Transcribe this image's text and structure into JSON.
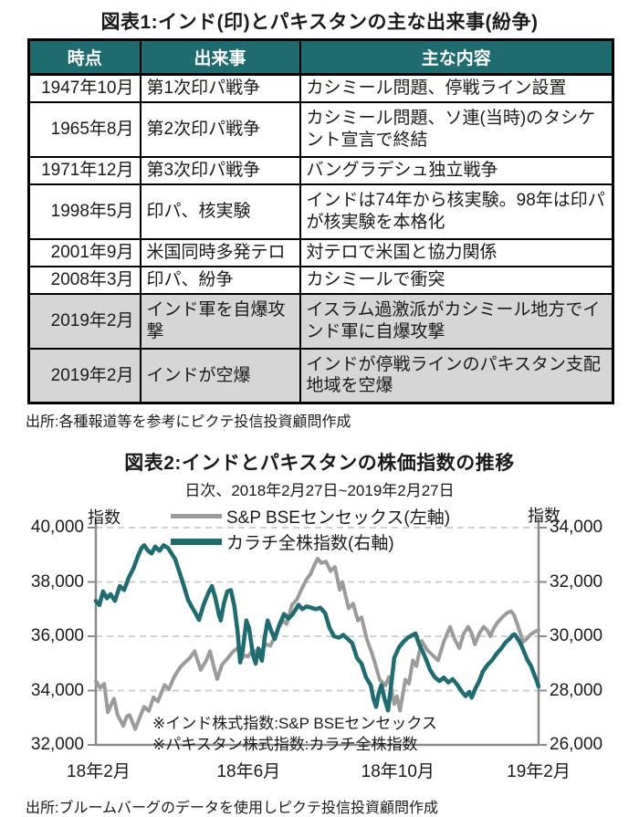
{
  "figure1": {
    "title": "図表1:インド(印)とパキスタンの主な出来事(紛争)",
    "table": {
      "headers": [
        "時点",
        "出来事",
        "主な内容"
      ],
      "rows": [
        {
          "date": "1947年10月",
          "event": "第1次印パ戦争",
          "detail": "カシミール問題、停戦ライン設置",
          "highlight": false
        },
        {
          "date": "1965年8月",
          "event": "第2次印パ戦争",
          "detail": "カシミール問題、ソ連(当時)のタシケント宣言で終結",
          "highlight": false
        },
        {
          "date": "1971年12月",
          "event": "第3次印パ戦争",
          "detail": "バングラデシュ独立戦争",
          "highlight": false
        },
        {
          "date": "1998年5月",
          "event": "印パ、核実験",
          "detail": "インドは74年から核実験。98年は印パが核実験を本格化",
          "highlight": false
        },
        {
          "date": "2001年9月",
          "event": "米国同時多発テロ",
          "detail": "対テロで米国と協力関係",
          "highlight": false
        },
        {
          "date": "2008年3月",
          "event": "印パ、紛争",
          "detail": "カシミールで衝突",
          "highlight": false
        },
        {
          "date": "2019年2月",
          "event": "インド軍を自爆攻撃",
          "detail": "イスラム過激派がカシミール地方でインド軍に自爆攻撃",
          "highlight": true
        },
        {
          "date": "2019年2月",
          "event": "インドが空爆",
          "detail": "インドが停戦ラインのパキスタン支配地域を空爆",
          "highlight": true
        }
      ]
    },
    "source": "出所:各種報道等を参考にピクテ投信投資顧問作成"
  },
  "figure2": {
    "title": "図表2:インドとパキスタンの株価指数の推移",
    "subtitle": "日次、2018年2月27日~2019年2月27日",
    "source": "出所:ブルームバーグのデータを使用しピクテ投信投資顧問作成"
  },
  "colors": {
    "teal": "#1E6B70",
    "line_gray": "#9B9B9B",
    "grid": "#C9C9C9",
    "axis": "#8A8A8A",
    "row_highlight": "#D6D6D6"
  },
  "chart_data": {
    "type": "line",
    "title": "図表2:インドとパキスタンの株価指数の推移",
    "subtitle": "日次、2018年2月27日~2019年2月27日",
    "grid": "horizontal-dashed",
    "legend_position": "top-center",
    "left_axis": {
      "label": "指数",
      "range": [
        32000,
        40000
      ],
      "ticks": [
        "40,000",
        "38,000",
        "36,000",
        "34,000",
        "32,000"
      ]
    },
    "right_axis": {
      "label": "指数",
      "range": [
        26000,
        34000
      ],
      "ticks": [
        "34,000",
        "32,000",
        "30,000",
        "28,000",
        "26,000"
      ]
    },
    "x_ticks": [
      {
        "label": "18年2月",
        "pos": 0.006
      },
      {
        "label": "18年6月",
        "pos": 0.345
      },
      {
        "label": "18年10月",
        "pos": 0.682
      },
      {
        "label": "19年2月",
        "pos": 1.0
      }
    ],
    "annotations": [
      "※インド株式指数:S&P  BSEセンセックス",
      "※パキスタン株式指数:カラチ全株指数"
    ],
    "series": [
      {
        "name": "S&P BSEセンセックス(左軸)",
        "axis": "left",
        "color": "#9B9B9B",
        "width": 4,
        "points": [
          [
            0.0,
            34350
          ],
          [
            0.01,
            34100
          ],
          [
            0.019,
            34250
          ],
          [
            0.027,
            33200
          ],
          [
            0.035,
            33500
          ],
          [
            0.041,
            33700
          ],
          [
            0.049,
            33100
          ],
          [
            0.062,
            32700
          ],
          [
            0.07,
            33050
          ],
          [
            0.076,
            33100
          ],
          [
            0.089,
            32580
          ],
          [
            0.099,
            33000
          ],
          [
            0.109,
            33400
          ],
          [
            0.12,
            33250
          ],
          [
            0.13,
            33750
          ],
          [
            0.14,
            33600
          ],
          [
            0.155,
            34200
          ],
          [
            0.165,
            34050
          ],
          [
            0.177,
            34500
          ],
          [
            0.19,
            34850
          ],
          [
            0.202,
            35050
          ],
          [
            0.212,
            35200
          ],
          [
            0.223,
            35450
          ],
          [
            0.237,
            34760
          ],
          [
            0.249,
            35100
          ],
          [
            0.258,
            35450
          ],
          [
            0.266,
            34900
          ],
          [
            0.274,
            34420
          ],
          [
            0.285,
            34950
          ],
          [
            0.293,
            35100
          ],
          [
            0.303,
            35300
          ],
          [
            0.311,
            35450
          ],
          [
            0.32,
            35560
          ],
          [
            0.328,
            35150
          ],
          [
            0.336,
            35300
          ],
          [
            0.344,
            35250
          ],
          [
            0.355,
            35500
          ],
          [
            0.363,
            35350
          ],
          [
            0.373,
            35450
          ],
          [
            0.384,
            35700
          ],
          [
            0.394,
            35650
          ],
          [
            0.402,
            35900
          ],
          [
            0.412,
            36300
          ],
          [
            0.423,
            36580
          ],
          [
            0.431,
            36450
          ],
          [
            0.443,
            37160
          ],
          [
            0.454,
            37350
          ],
          [
            0.464,
            37710
          ],
          [
            0.476,
            38100
          ],
          [
            0.485,
            38290
          ],
          [
            0.493,
            38600
          ],
          [
            0.501,
            38860
          ],
          [
            0.509,
            38700
          ],
          [
            0.52,
            38750
          ],
          [
            0.53,
            38400
          ],
          [
            0.54,
            38550
          ],
          [
            0.551,
            37710
          ],
          [
            0.557,
            38000
          ],
          [
            0.571,
            37030
          ],
          [
            0.581,
            37200
          ],
          [
            0.592,
            36580
          ],
          [
            0.6,
            36700
          ],
          [
            0.612,
            35900
          ],
          [
            0.623,
            35400
          ],
          [
            0.633,
            34870
          ],
          [
            0.641,
            34400
          ],
          [
            0.654,
            34190
          ],
          [
            0.662,
            34500
          ],
          [
            0.674,
            33500
          ],
          [
            0.68,
            33800
          ],
          [
            0.687,
            33260
          ],
          [
            0.699,
            34400
          ],
          [
            0.707,
            34250
          ],
          [
            0.716,
            35110
          ],
          [
            0.724,
            34900
          ],
          [
            0.736,
            35830
          ],
          [
            0.748,
            35500
          ],
          [
            0.761,
            35300
          ],
          [
            0.773,
            35110
          ],
          [
            0.786,
            35800
          ],
          [
            0.8,
            36350
          ],
          [
            0.81,
            35900
          ],
          [
            0.821,
            35560
          ],
          [
            0.831,
            36100
          ],
          [
            0.841,
            36350
          ],
          [
            0.849,
            36100
          ],
          [
            0.856,
            35700
          ],
          [
            0.866,
            36100
          ],
          [
            0.876,
            36350
          ],
          [
            0.885,
            36200
          ],
          [
            0.891,
            36000
          ],
          [
            0.899,
            36300
          ],
          [
            0.907,
            36500
          ],
          [
            0.918,
            36700
          ],
          [
            0.928,
            36850
          ],
          [
            0.938,
            36920
          ],
          [
            0.944,
            36800
          ],
          [
            0.953,
            36400
          ],
          [
            0.959,
            36100
          ],
          [
            0.965,
            35790
          ],
          [
            0.973,
            35900
          ],
          [
            0.981,
            36050
          ],
          [
            0.99,
            36150
          ],
          [
            1.0,
            36230
          ]
        ]
      },
      {
        "name": "カラチ全株指数(右軸)",
        "axis": "right",
        "color": "#1E6B70",
        "width": 4.5,
        "points": [
          [
            0.0,
            31300
          ],
          [
            0.008,
            31150
          ],
          [
            0.016,
            31650
          ],
          [
            0.025,
            31400
          ],
          [
            0.033,
            31550
          ],
          [
            0.043,
            31300
          ],
          [
            0.054,
            31850
          ],
          [
            0.064,
            31700
          ],
          [
            0.074,
            32150
          ],
          [
            0.085,
            32500
          ],
          [
            0.095,
            32950
          ],
          [
            0.103,
            33250
          ],
          [
            0.109,
            33350
          ],
          [
            0.118,
            33150
          ],
          [
            0.126,
            33050
          ],
          [
            0.134,
            33300
          ],
          [
            0.144,
            33150
          ],
          [
            0.153,
            33350
          ],
          [
            0.163,
            33250
          ],
          [
            0.171,
            33050
          ],
          [
            0.179,
            32850
          ],
          [
            0.188,
            32400
          ],
          [
            0.198,
            31900
          ],
          [
            0.208,
            31350
          ],
          [
            0.216,
            31100
          ],
          [
            0.225,
            30850
          ],
          [
            0.233,
            30600
          ],
          [
            0.243,
            31150
          ],
          [
            0.254,
            31600
          ],
          [
            0.262,
            31850
          ],
          [
            0.27,
            31400
          ],
          [
            0.278,
            30800
          ],
          [
            0.282,
            30580
          ],
          [
            0.289,
            31200
          ],
          [
            0.297,
            31650
          ],
          [
            0.305,
            31700
          ],
          [
            0.313,
            31100
          ],
          [
            0.32,
            30200
          ],
          [
            0.326,
            29040
          ],
          [
            0.332,
            29500
          ],
          [
            0.34,
            30580
          ],
          [
            0.346,
            30300
          ],
          [
            0.355,
            29300
          ],
          [
            0.361,
            28990
          ],
          [
            0.367,
            29550
          ],
          [
            0.375,
            29100
          ],
          [
            0.381,
            29900
          ],
          [
            0.388,
            30580
          ],
          [
            0.396,
            30200
          ],
          [
            0.404,
            29900
          ],
          [
            0.414,
            30400
          ],
          [
            0.425,
            30820
          ],
          [
            0.435,
            30650
          ],
          [
            0.445,
            30820
          ],
          [
            0.458,
            31160
          ],
          [
            0.466,
            31000
          ],
          [
            0.476,
            31100
          ],
          [
            0.487,
            31050
          ],
          [
            0.497,
            31000
          ],
          [
            0.507,
            31050
          ],
          [
            0.518,
            30850
          ],
          [
            0.528,
            30300
          ],
          [
            0.538,
            30000
          ],
          [
            0.549,
            29950
          ],
          [
            0.559,
            30050
          ],
          [
            0.569,
            29900
          ],
          [
            0.579,
            29750
          ],
          [
            0.59,
            29200
          ],
          [
            0.6,
            28990
          ],
          [
            0.61,
            28500
          ],
          [
            0.621,
            28190
          ],
          [
            0.627,
            27700
          ],
          [
            0.633,
            27400
          ],
          [
            0.639,
            27900
          ],
          [
            0.645,
            28200
          ],
          [
            0.652,
            27700
          ],
          [
            0.66,
            27270
          ],
          [
            0.666,
            28050
          ],
          [
            0.674,
            29210
          ],
          [
            0.685,
            29600
          ],
          [
            0.695,
            29800
          ],
          [
            0.705,
            29950
          ],
          [
            0.716,
            30050
          ],
          [
            0.722,
            30100
          ],
          [
            0.73,
            29700
          ],
          [
            0.738,
            29450
          ],
          [
            0.747,
            29100
          ],
          [
            0.755,
            28760
          ],
          [
            0.765,
            28500
          ],
          [
            0.776,
            28350
          ],
          [
            0.786,
            28480
          ],
          [
            0.796,
            28300
          ],
          [
            0.806,
            28420
          ],
          [
            0.817,
            28200
          ],
          [
            0.827,
            27950
          ],
          [
            0.835,
            27800
          ],
          [
            0.843,
            27950
          ],
          [
            0.849,
            27740
          ],
          [
            0.858,
            28100
          ],
          [
            0.866,
            28350
          ],
          [
            0.874,
            28700
          ],
          [
            0.885,
            28950
          ],
          [
            0.895,
            29120
          ],
          [
            0.905,
            29350
          ],
          [
            0.916,
            29560
          ],
          [
            0.926,
            29780
          ],
          [
            0.934,
            29900
          ],
          [
            0.942,
            30050
          ],
          [
            0.946,
            30070
          ],
          [
            0.955,
            29850
          ],
          [
            0.961,
            29670
          ],
          [
            0.969,
            29350
          ],
          [
            0.975,
            29120
          ],
          [
            0.983,
            28900
          ],
          [
            0.99,
            28600
          ],
          [
            0.996,
            28350
          ],
          [
            1.0,
            28150
          ]
        ]
      }
    ]
  }
}
